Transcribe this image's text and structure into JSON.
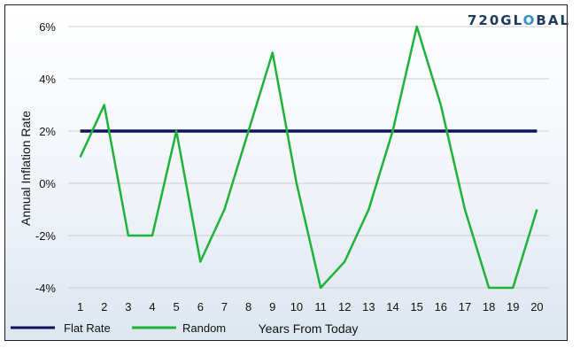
{
  "logo": {
    "part1": "720GL",
    "part2": "O",
    "part3": "BAL",
    "dark": "#1f3a5f",
    "accent": "#2f8fcf"
  },
  "colors": {
    "flat": "#10135a",
    "random": "#1db33a",
    "grid": "#c9cdd2"
  },
  "chart_data": {
    "type": "line",
    "title": "",
    "xlabel": "Years From Today",
    "ylabel": "Annual Inflation Rate",
    "categories": [
      "1",
      "2",
      "3",
      "4",
      "5",
      "6",
      "7",
      "8",
      "9",
      "10",
      "11",
      "12",
      "13",
      "14",
      "15",
      "16",
      "17",
      "18",
      "19",
      "20"
    ],
    "ylim": [
      -4,
      6
    ],
    "yticks": [
      "6%",
      "4%",
      "2%",
      "0%",
      "-2%",
      "-4%"
    ],
    "grid": true,
    "legend": "bottom-left",
    "series": [
      {
        "name": "Flat Rate",
        "values": [
          2,
          2,
          2,
          2,
          2,
          2,
          2,
          2,
          2,
          2,
          2,
          2,
          2,
          2,
          2,
          2,
          2,
          2,
          2,
          2
        ]
      },
      {
        "name": "Random",
        "values": [
          1,
          3,
          -2,
          -2,
          2,
          -3,
          -1,
          2,
          5,
          0,
          -4,
          -3,
          -1,
          2,
          6,
          3,
          -1,
          -4,
          -4,
          -1
        ]
      }
    ]
  }
}
